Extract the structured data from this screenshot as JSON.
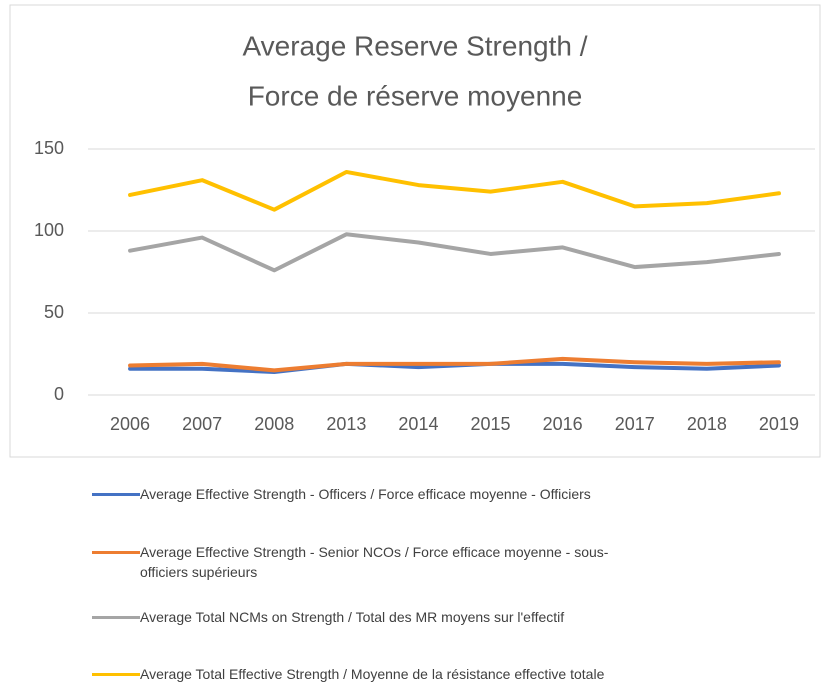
{
  "chart_data": {
    "type": "line",
    "title": [
      "Average Reserve Strength /",
      "Force de réserve moyenne"
    ],
    "categories": [
      "2006",
      "2007",
      "2008",
      "2013",
      "2014",
      "2015",
      "2016",
      "2017",
      "2018",
      "2019"
    ],
    "series": [
      {
        "name": "Average Effective Strength - Officers / Force efficace moyenne - Officiers",
        "color": "#4472c4",
        "values": [
          16,
          16,
          14,
          19,
          17,
          19,
          19,
          17,
          16,
          18
        ]
      },
      {
        "name": "Average Effective Strength - Senior NCOs / Force efficace moyenne - sous-officiers supérieurs",
        "color": "#ed7d31",
        "values": [
          18,
          19,
          15,
          19,
          19,
          19,
          22,
          20,
          19,
          20
        ]
      },
      {
        "name": "Average Total NCMs on Strength / Total des MR moyens sur l'effectif",
        "color": "#a5a5a5",
        "values": [
          88,
          96,
          76,
          98,
          93,
          86,
          90,
          78,
          81,
          86
        ]
      },
      {
        "name": "Average Total Effective Strength / Moyenne de la résistance effective totale",
        "color": "#ffc000",
        "values": [
          122,
          131,
          113,
          136,
          128,
          124,
          130,
          115,
          117,
          123
        ]
      }
    ],
    "ylim": [
      0,
      150
    ],
    "yticks": [
      0,
      50,
      100,
      150
    ],
    "grid": true
  }
}
